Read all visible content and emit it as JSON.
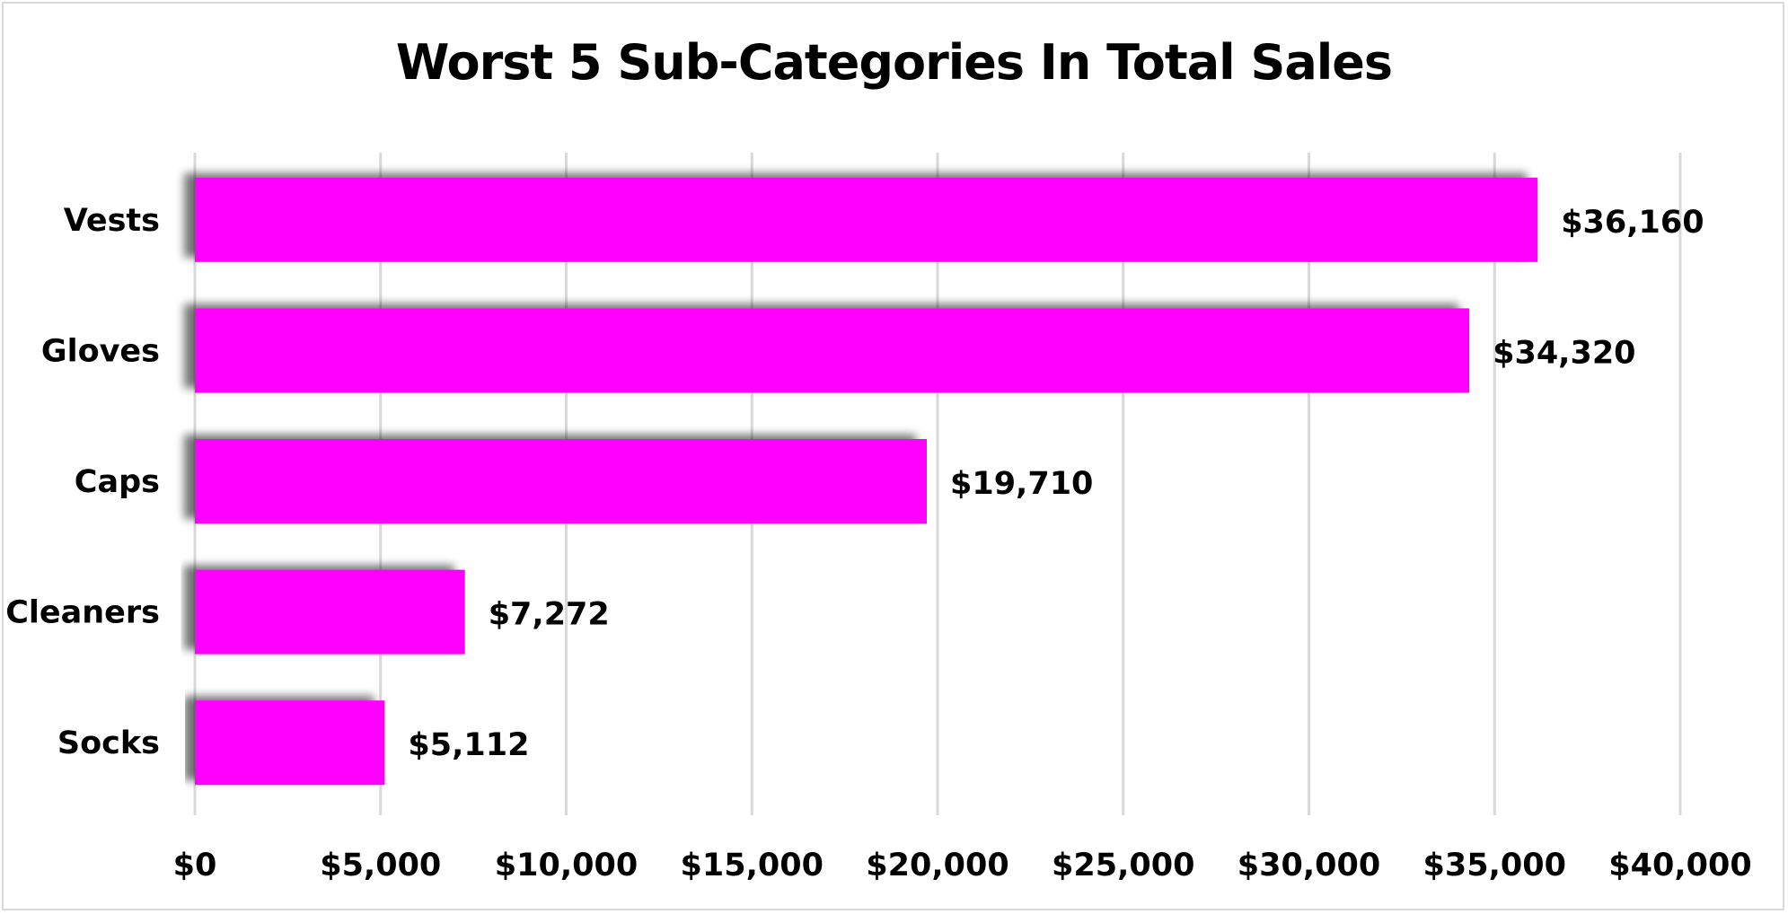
{
  "chart_data": {
    "type": "bar",
    "orientation": "horizontal",
    "title": "Worst 5 Sub-Categories In Total Sales",
    "xlabel": "",
    "ylabel": "",
    "categories": [
      "Vests",
      "Gloves",
      "Caps",
      "Cleaners",
      "Socks"
    ],
    "values": [
      36160,
      34320,
      19710,
      7272,
      5112
    ],
    "value_labels": [
      "$36,160",
      "$34,320",
      "$19,710",
      "$7,272",
      "$5,112"
    ],
    "xlim": [
      0,
      40000
    ],
    "x_ticks": [
      0,
      5000,
      10000,
      15000,
      20000,
      25000,
      30000,
      35000,
      40000
    ],
    "x_tick_labels": [
      "$0",
      "$5,000",
      "$10,000",
      "$15,000",
      "$20,000",
      "$25,000",
      "$30,000",
      "$35,000",
      "$40,000"
    ],
    "grid": "vertical",
    "legend": "none",
    "bar_color": "#FF00FF",
    "grid_color": "#D9D9D9"
  }
}
